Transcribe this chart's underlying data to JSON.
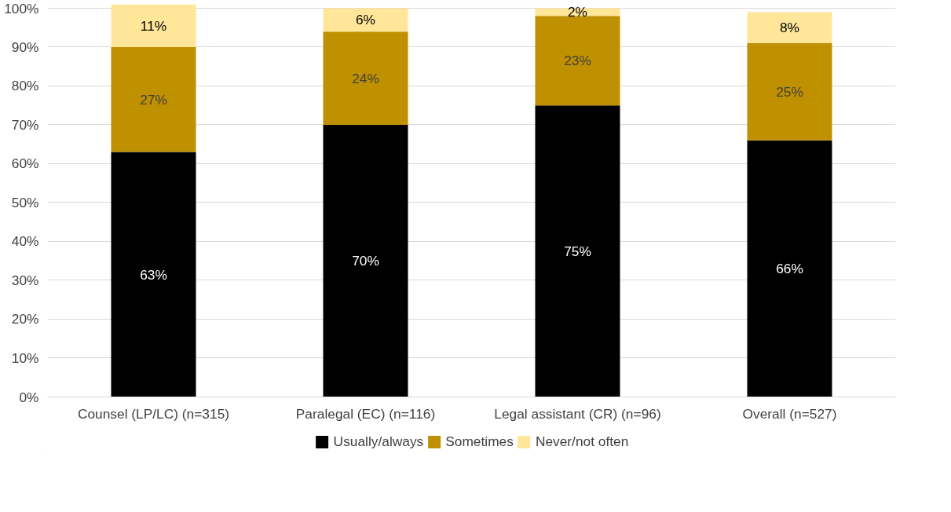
{
  "chart_data": {
    "type": "bar",
    "stacked": true,
    "data_labels": true,
    "grid": "y",
    "legend": "bottom",
    "categories": [
      "Counsel (LP/LC) (n=315)",
      "Paralegal (EC) (n=116)",
      "Legal assistant (CR) (n=96)",
      "Overall (n=527)"
    ],
    "series": [
      {
        "name": "Usually/always",
        "color": "#000000",
        "values": [
          63,
          70,
          75,
          66
        ],
        "value_labels": [
          "63%",
          "70%",
          "75%",
          "66%"
        ]
      },
      {
        "name": "Sometimes",
        "color": "#bf9000",
        "values": [
          27,
          24,
          23,
          25
        ],
        "value_labels": [
          "27%",
          "24%",
          "23%",
          "25%"
        ]
      },
      {
        "name": "Never/not often",
        "color": "#ffe699",
        "values": [
          11,
          6,
          2,
          8
        ],
        "value_labels": [
          "11%",
          "6%",
          "2%",
          "8%"
        ]
      }
    ],
    "ylim": [
      0,
      101
    ],
    "yticks": [
      {
        "value": 0,
        "label": "0%"
      },
      {
        "value": 10,
        "label": "10%"
      },
      {
        "value": 20,
        "label": "20%"
      },
      {
        "value": 30,
        "label": "30%"
      },
      {
        "value": 40,
        "label": "40%"
      },
      {
        "value": 50,
        "label": "50%"
      },
      {
        "value": 60,
        "label": "60%"
      },
      {
        "value": 70,
        "label": "70%"
      },
      {
        "value": 80,
        "label": "80%"
      },
      {
        "value": 90,
        "label": "90%"
      },
      {
        "value": 100,
        "label": "100%"
      }
    ]
  }
}
